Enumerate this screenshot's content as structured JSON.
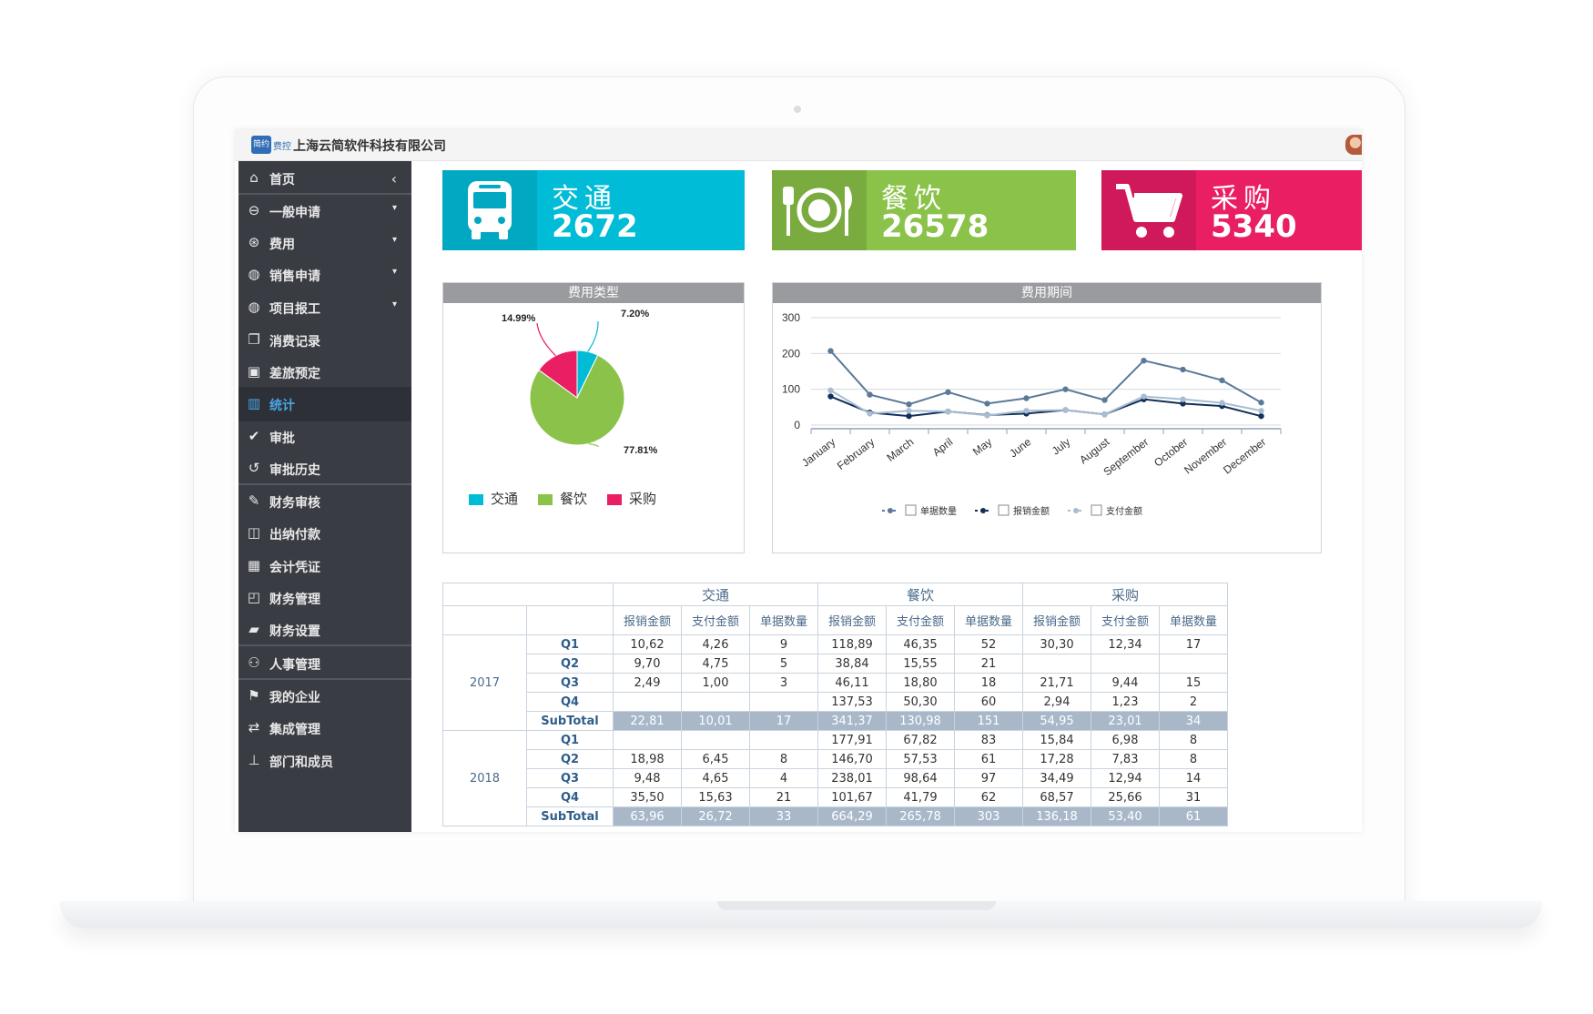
{
  "header": {
    "logo_text": "简约",
    "logo_sub": "费控",
    "company": "上海云简软件科技有限公司"
  },
  "sidebar": {
    "items": [
      {
        "label": "首页",
        "icon": "home-icon",
        "glyph": "⌂",
        "caret": "‹"
      },
      {
        "label": "一般申请",
        "icon": "minus-circle-icon",
        "glyph": "⊖",
        "caret": "▾"
      },
      {
        "label": "费用",
        "icon": "money-icon",
        "glyph": "⊛",
        "caret": "▾"
      },
      {
        "label": "销售申请",
        "icon": "globe-icon",
        "glyph": "◍",
        "caret": "▾"
      },
      {
        "label": "项目报工",
        "icon": "globe-icon",
        "glyph": "◍",
        "caret": "▾"
      },
      {
        "label": "消费记录",
        "icon": "copy-icon",
        "glyph": "❐",
        "caret": ""
      },
      {
        "label": "差旅预定",
        "icon": "briefcase-icon",
        "glyph": "▣",
        "caret": ""
      },
      {
        "label": "统计",
        "icon": "bar-chart-icon",
        "glyph": "▥",
        "caret": ""
      },
      {
        "label": "审批",
        "icon": "check-circle-icon",
        "glyph": "✔",
        "caret": ""
      },
      {
        "label": "审批历史",
        "icon": "history-icon",
        "glyph": "↺",
        "caret": ""
      },
      {
        "label": "财务审核",
        "icon": "edit-icon",
        "glyph": "✎",
        "caret": ""
      },
      {
        "label": "出纳付款",
        "icon": "cash-icon",
        "glyph": "◫",
        "caret": ""
      },
      {
        "label": "会计凭证",
        "icon": "calculator-icon",
        "glyph": "▦",
        "caret": ""
      },
      {
        "label": "财务管理",
        "icon": "clipboard-icon",
        "glyph": "◰",
        "caret": ""
      },
      {
        "label": "财务设置",
        "icon": "book-icon",
        "glyph": "▰",
        "caret": ""
      },
      {
        "label": "人事管理",
        "icon": "users-icon",
        "glyph": "⚇",
        "caret": ""
      },
      {
        "label": "我的企业",
        "icon": "flag-icon",
        "glyph": "⚑",
        "caret": ""
      },
      {
        "label": "集成管理",
        "icon": "retweet-icon",
        "glyph": "⇄",
        "caret": ""
      },
      {
        "label": "部门和成员",
        "icon": "sitemap-icon",
        "glyph": "⊥",
        "caret": ""
      }
    ],
    "active_index": 7
  },
  "cards": [
    {
      "title": "交通",
      "value": "2672",
      "icon": "bus-icon",
      "color": "#00bcd6"
    },
    {
      "title": "餐饮",
      "value": "26578",
      "icon": "dining-icon",
      "color": "#8bc34a"
    },
    {
      "title": "采购",
      "value": "5340",
      "icon": "cart-icon",
      "color": "#e91e63"
    }
  ],
  "pie_panel": {
    "title": "费用类型"
  },
  "line_panel": {
    "title": "费用期间"
  },
  "chart_data": [
    {
      "type": "pie",
      "title": "费用类型",
      "slices": [
        {
          "label": "交通",
          "value": 7.2,
          "text": "7.20%",
          "color": "#00bcd6"
        },
        {
          "label": "餐饮",
          "value": 77.81,
          "text": "77.81%",
          "color": "#8bc34a"
        },
        {
          "label": "采购",
          "value": 14.99,
          "text": "14.99%",
          "color": "#e91e63"
        }
      ]
    },
    {
      "type": "line",
      "title": "费用期间",
      "categories": [
        "January",
        "February",
        "March",
        "April",
        "May",
        "June",
        "July",
        "August",
        "September",
        "October",
        "November",
        "December"
      ],
      "yticks": [
        0,
        100,
        200,
        300
      ],
      "ylim": [
        0,
        300
      ],
      "series": [
        {
          "name": "单据数量",
          "color": "#5b7a99",
          "values": [
            207,
            85,
            58,
            92,
            60,
            75,
            100,
            70,
            180,
            155,
            125,
            63
          ]
        },
        {
          "name": "报销金额",
          "color": "#12305a",
          "values": [
            80,
            35,
            25,
            38,
            28,
            32,
            42,
            30,
            72,
            60,
            53,
            25
          ]
        },
        {
          "name": "支付金额",
          "color": "#a9bdd2",
          "values": [
            97,
            32,
            40,
            38,
            27,
            40,
            42,
            30,
            80,
            72,
            62,
            40
          ]
        }
      ]
    }
  ],
  "table": {
    "groups": [
      "交通",
      "餐饮",
      "采购"
    ],
    "columns": [
      "报销金额",
      "支付金额",
      "单据数量"
    ],
    "years": [
      {
        "year": "2017",
        "rows": [
          {
            "q": "Q1",
            "cells": [
              "10,62",
              "4,26",
              "9",
              "118,89",
              "46,35",
              "52",
              "30,30",
              "12,34",
              "17"
            ]
          },
          {
            "q": "Q2",
            "cells": [
              "9,70",
              "4,75",
              "5",
              "38,84",
              "15,55",
              "21",
              "",
              "",
              ""
            ]
          },
          {
            "q": "Q3",
            "cells": [
              "2,49",
              "1,00",
              "3",
              "46,11",
              "18,80",
              "18",
              "21,71",
              "9,44",
              "15"
            ]
          },
          {
            "q": "Q4",
            "cells": [
              "",
              "",
              "",
              "137,53",
              "50,30",
              "60",
              "2,94",
              "1,23",
              "2"
            ]
          }
        ],
        "subtotal": {
          "q": "SubTotal",
          "cells": [
            "22,81",
            "10,01",
            "17",
            "341,37",
            "130,98",
            "151",
            "54,95",
            "23,01",
            "34"
          ]
        }
      },
      {
        "year": "2018",
        "rows": [
          {
            "q": "Q1",
            "cells": [
              "",
              "",
              "",
              "177,91",
              "67,82",
              "83",
              "15,84",
              "6,98",
              "8"
            ]
          },
          {
            "q": "Q2",
            "cells": [
              "18,98",
              "6,45",
              "8",
              "146,70",
              "57,53",
              "61",
              "17,28",
              "7,83",
              "8"
            ]
          },
          {
            "q": "Q3",
            "cells": [
              "9,48",
              "4,65",
              "4",
              "238,01",
              "98,64",
              "97",
              "34,49",
              "12,94",
              "14"
            ]
          },
          {
            "q": "Q4",
            "cells": [
              "35,50",
              "15,63",
              "21",
              "101,67",
              "41,79",
              "62",
              "68,57",
              "25,66",
              "31"
            ]
          }
        ],
        "subtotal": {
          "q": "SubTotal",
          "cells": [
            "63,96",
            "26,72",
            "33",
            "664,29",
            "265,78",
            "303",
            "136,18",
            "53,40",
            "61"
          ]
        }
      }
    ]
  }
}
